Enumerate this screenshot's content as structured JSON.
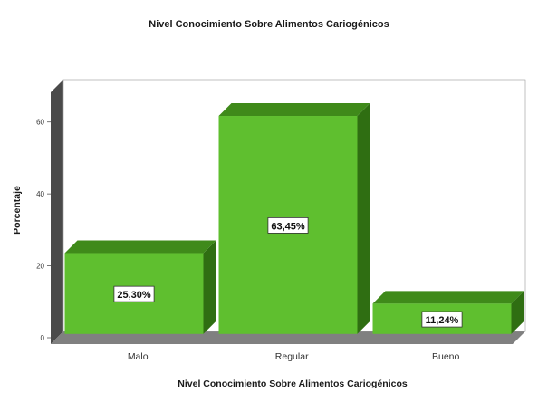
{
  "chart_data": {
    "type": "bar",
    "title": "Nivel Conocimiento Sobre Alimentos Cariogénicos",
    "xlabel": "Nivel Conocimiento Sobre Alimentos Cariogénicos",
    "ylabel": "Porcentaje",
    "categories": [
      "Malo",
      "Regular",
      "Bueno"
    ],
    "values": [
      25.3,
      63.45,
      11.24
    ],
    "data_labels": [
      "25,30%",
      "63,45%",
      "11,24%"
    ],
    "yticks": [
      0,
      20,
      40,
      60
    ],
    "ylim": [
      0,
      70
    ],
    "grid": false,
    "legend": "none",
    "style": "3d",
    "colors": {
      "bar_front": "#5fbf2f",
      "bar_top": "#3f8a1a",
      "bar_side": "#2f6e12",
      "wall": "#4a4a4a",
      "floor": "#808080",
      "wall_face": "#ffffff"
    }
  }
}
